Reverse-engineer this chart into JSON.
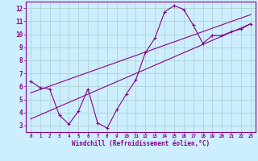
{
  "xlabel": "Windchill (Refroidissement éolien,°C)",
  "bg_color": "#cceeff",
  "grid_color": "#aacccc",
  "line_color": "#880088",
  "xlim": [
    -0.5,
    23.5
  ],
  "ylim": [
    2.5,
    12.5
  ],
  "x_ticks": [
    0,
    1,
    2,
    3,
    4,
    5,
    6,
    7,
    8,
    9,
    10,
    11,
    12,
    13,
    14,
    15,
    16,
    17,
    18,
    19,
    20,
    21,
    22,
    23
  ],
  "y_ticks": [
    3,
    4,
    5,
    6,
    7,
    8,
    9,
    10,
    11,
    12
  ],
  "curve1_x": [
    0,
    1,
    2,
    3,
    4,
    5,
    6,
    7,
    8,
    9,
    10,
    11,
    12,
    13,
    14,
    15,
    16,
    17,
    18,
    19,
    20,
    21,
    22,
    23
  ],
  "curve1_y": [
    6.4,
    5.9,
    5.8,
    3.8,
    3.1,
    4.1,
    5.8,
    3.2,
    2.8,
    4.2,
    5.4,
    6.5,
    8.6,
    9.7,
    11.7,
    12.2,
    11.9,
    10.7,
    9.3,
    9.9,
    9.9,
    10.2,
    10.4,
    10.8
  ],
  "curve2_x": [
    0,
    23
  ],
  "curve2_y": [
    3.5,
    10.8
  ],
  "curve3_x": [
    0,
    23
  ],
  "curve3_y": [
    5.5,
    11.5
  ]
}
